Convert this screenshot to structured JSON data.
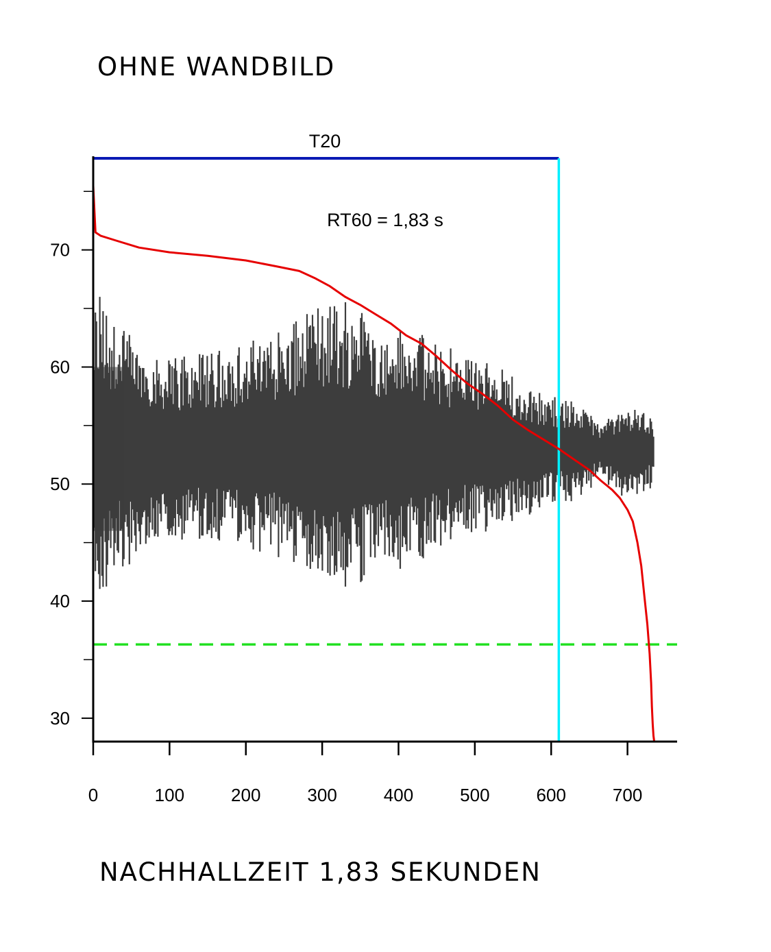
{
  "header": {
    "title": "OHNE WANDBILD"
  },
  "footer": {
    "caption": "NACHHALLZEIT 1,83 SEKUNDEN"
  },
  "chart_data": {
    "type": "line",
    "title": "",
    "xlabel": "",
    "ylabel": "",
    "xlim": [
      0,
      765
    ],
    "ylim": [
      28,
      78
    ],
    "x_ticks": [
      0,
      100,
      200,
      300,
      400,
      500,
      600,
      700
    ],
    "y_ticks": [
      30,
      40,
      50,
      60,
      70
    ],
    "y_minor_ticks": [
      35,
      45,
      55,
      65,
      75
    ],
    "grid": false,
    "annotations": {
      "range_label": "T20",
      "range_start": 0,
      "range_end": 610,
      "rt60_label": "RT60 = 1,83 s",
      "noise_floor": 36.3
    },
    "colors": {
      "waveform": "#3d3d3d",
      "decay_curve": "#e60000",
      "range_bar": "#0a1ab4",
      "marker_line": "#00f0ff",
      "noise_floor": "#22e022",
      "axes": "#000000"
    },
    "series": [
      {
        "role": "decay_curve",
        "x": [
          0,
          3,
          10,
          30,
          60,
          100,
          150,
          200,
          240,
          270,
          290,
          310,
          330,
          350,
          370,
          390,
          410,
          430,
          450,
          470,
          490,
          510,
          530,
          550,
          570,
          590,
          610,
          630,
          650,
          665,
          680,
          690,
          700,
          707,
          713,
          718,
          722,
          726,
          729,
          731,
          732,
          733,
          734,
          735
        ],
        "y": [
          75.5,
          71.5,
          71.2,
          70.8,
          70.2,
          69.8,
          69.5,
          69.1,
          68.6,
          68.2,
          67.6,
          66.9,
          66.0,
          65.3,
          64.5,
          63.7,
          62.7,
          62.0,
          60.9,
          59.7,
          58.6,
          57.7,
          56.7,
          55.5,
          54.6,
          53.8,
          53.0,
          52.1,
          51.2,
          50.3,
          49.5,
          48.8,
          47.8,
          46.8,
          45.0,
          43.0,
          40.5,
          38.0,
          35.5,
          33.0,
          31.0,
          29.5,
          28.5,
          28.0
        ]
      },
      {
        "role": "waveform_envelope",
        "x": [
          0,
          3,
          10,
          25,
          50,
          100,
          150,
          200,
          250,
          300,
          340,
          380,
          420,
          460,
          500,
          540,
          580,
          610,
          640,
          665,
          690,
          710,
          730,
          735
        ],
        "upper": [
          53,
          66,
          64.5,
          63,
          62,
          60,
          60.5,
          61,
          62.5,
          64,
          64.5,
          62.5,
          62,
          61,
          60,
          59,
          57.5,
          57,
          56.5,
          55,
          56,
          56.5,
          55.5,
          54.5
        ],
        "lower": [
          53,
          40,
          41.5,
          43,
          44,
          46,
          46,
          45.5,
          44.5,
          43.5,
          42,
          43.5,
          44,
          45.5,
          46.5,
          47,
          48,
          49,
          49,
          51,
          49,
          49,
          50,
          51.5
        ]
      }
    ]
  }
}
